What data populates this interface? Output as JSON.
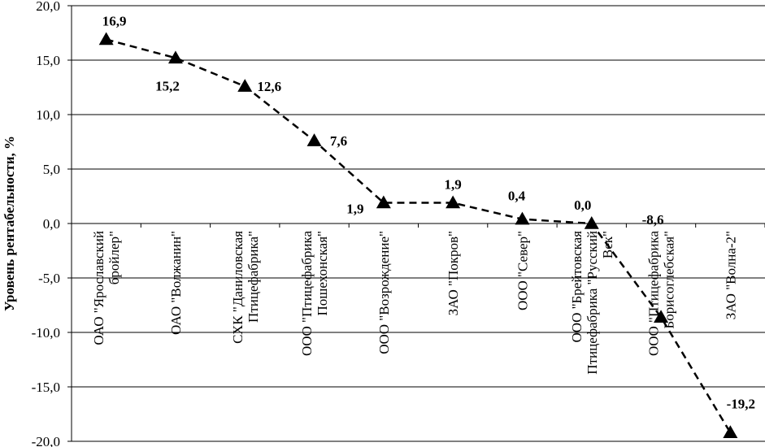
{
  "chart_data": {
    "type": "line",
    "title": "",
    "xlabel": "",
    "ylabel": "Уровень рентабельности, %",
    "ylim": [
      -20,
      20
    ],
    "ytick_step": 5,
    "y_tick_labels": [
      "-20,0",
      "-15,0",
      "-10,0",
      "-5,0",
      "0,0",
      "5,0",
      "10,0",
      "15,0",
      "20,0"
    ],
    "grid": true,
    "line_style": "dashed",
    "marker": "triangle",
    "color": "#000000",
    "categories": [
      [
        "ОАО \"Ярославский",
        "бройлер\""
      ],
      [
        "ОАО \"Волжанин\""
      ],
      [
        "СХК \"Даниловская",
        "Птицефабрика\""
      ],
      [
        "ООО \"Птицефабрика",
        "Пошехонская\""
      ],
      [
        "ООО \"Возрождение\""
      ],
      [
        "ЗАО \"Покров\""
      ],
      [
        "ООО \"Север\""
      ],
      [
        "ООО \"Брейтовская",
        "Птицефабрика \"Русский",
        "Век\""
      ],
      [
        "ООО \"Птицефабрика",
        "Борисоглебская\""
      ],
      [
        "ЗАО \"Волна-2\""
      ]
    ],
    "values": [
      16.9,
      15.2,
      12.6,
      7.6,
      1.9,
      1.9,
      0.4,
      0.0,
      -8.6,
      -19.2
    ],
    "data_labels": [
      "16,9",
      "15,2",
      "12,6",
      "7,6",
      "1,9",
      "1,9",
      "0,4",
      "0,0",
      "-8,6",
      "-19,2"
    ]
  }
}
